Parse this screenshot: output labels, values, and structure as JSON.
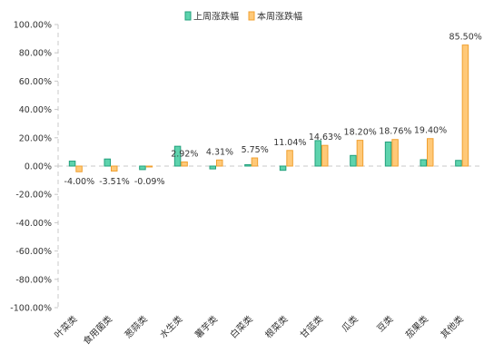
{
  "chart_data": {
    "type": "bar",
    "categories": [
      "叶菜类",
      "食用菌类",
      "葱蒜类",
      "水生类",
      "薯芋类",
      "白菜类",
      "根菜类",
      "甘蓝类",
      "瓜类",
      "豆类",
      "茄果类",
      "其他类"
    ],
    "series": [
      {
        "name": "上周涨跌幅",
        "values": [
          3.5,
          5.0,
          -2.5,
          14.0,
          -2.0,
          1.0,
          -3.0,
          18.0,
          7.5,
          17.0,
          4.5,
          4.0
        ],
        "color": "#5dd3ad",
        "stroke": "#23a07c"
      },
      {
        "name": "本周涨跌幅",
        "values": [
          -4.0,
          -3.51,
          -0.09,
          2.92,
          4.31,
          5.75,
          11.04,
          14.63,
          18.2,
          18.76,
          19.4,
          85.5
        ],
        "labels": [
          "-4.00%",
          "-3.51%",
          "-0.09%",
          "2.92%",
          "4.31%",
          "5.75%",
          "11.04%",
          "14.63%",
          "18.20%",
          "18.76%",
          "19.40%",
          "85.50%"
        ],
        "color": "#ffc978",
        "stroke": "#f0a030"
      }
    ],
    "yticks": [
      "100.00%",
      "80.00%",
      "60.00%",
      "40.00%",
      "20.00%",
      "0.00%",
      "-20.00%",
      "-40.00%",
      "-60.00%",
      "-80.00%",
      "-100.00%"
    ],
    "ylim": [
      -100,
      100
    ],
    "legend_position": "top-center",
    "grid": false
  }
}
